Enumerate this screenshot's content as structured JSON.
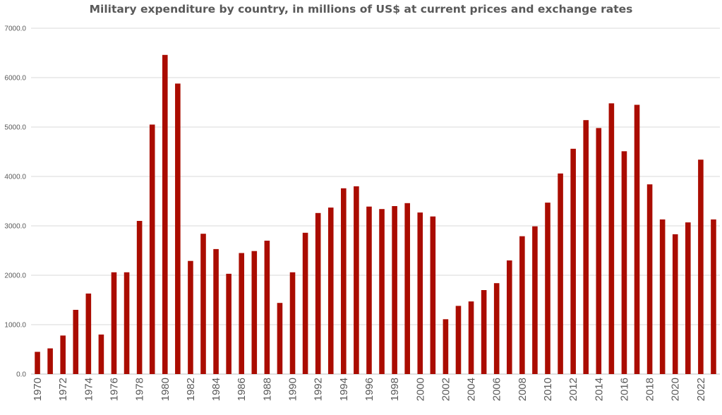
{
  "chart_data": {
    "type": "bar",
    "title": "Military expenditure by country, in millions of US$ at current prices and exchange rates",
    "xlabel": "",
    "ylabel": "",
    "ylim": [
      0,
      7000
    ],
    "yticks": [
      "0.0",
      "1000.0",
      "2000.0",
      "3000.0",
      "4000.0",
      "5000.0",
      "6000.0",
      "7000.0"
    ],
    "grid": true,
    "bar_color": "#aa0c00",
    "categories": [
      1970,
      1971,
      1972,
      1973,
      1974,
      1975,
      1976,
      1977,
      1978,
      1979,
      1980,
      1981,
      1982,
      1983,
      1984,
      1985,
      1986,
      1987,
      1988,
      1989,
      1990,
      1991,
      1992,
      1993,
      1994,
      1995,
      1996,
      1997,
      1998,
      1999,
      2000,
      2001,
      2002,
      2003,
      2004,
      2005,
      2006,
      2007,
      2008,
      2009,
      2010,
      2011,
      2012,
      2013,
      2014,
      2015,
      2016,
      2017,
      2018,
      2019,
      2020,
      2021,
      2022,
      2023
    ],
    "xtick_labels": [
      "1970",
      "1972",
      "1974",
      "1976",
      "1978",
      "1980",
      "1982",
      "1984",
      "1986",
      "1988",
      "1990",
      "1992",
      "1994",
      "1996",
      "1998",
      "2000",
      "2002",
      "2004",
      "2006",
      "2008",
      "2010",
      "2012",
      "2014",
      "2016",
      "2018",
      "2020",
      "2022"
    ],
    "values": [
      450,
      520,
      780,
      1300,
      1630,
      800,
      2060,
      2060,
      3100,
      5050,
      6460,
      5880,
      2290,
      2840,
      2530,
      2030,
      2450,
      2490,
      2700,
      1440,
      2060,
      2860,
      3260,
      3370,
      3760,
      3800,
      3390,
      3340,
      3400,
      3460,
      3270,
      3190,
      1110,
      1380,
      1470,
      1700,
      1840,
      2300,
      2790,
      2990,
      3470,
      4060,
      4560,
      5140,
      4980,
      5480,
      4510,
      5450,
      3840,
      3130,
      2830,
      3070,
      4340,
      3130
    ]
  }
}
